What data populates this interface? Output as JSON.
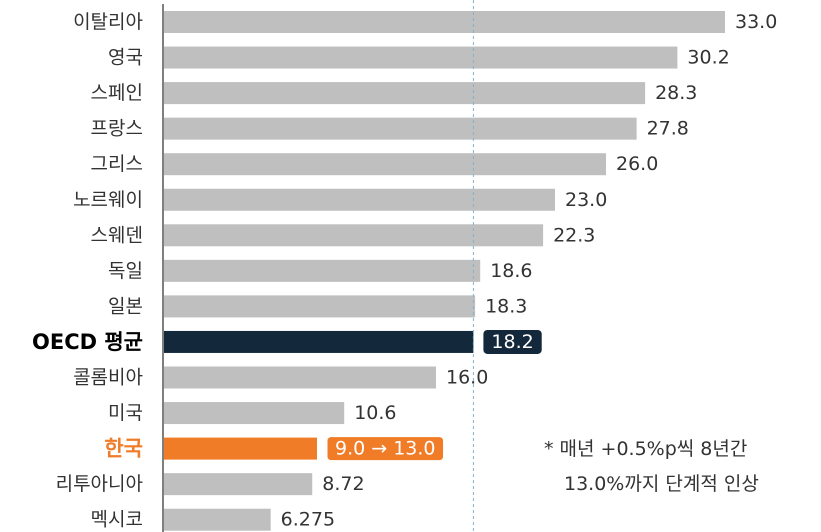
{
  "chart_data": {
    "type": "hbar",
    "categories": [
      "이탈리아",
      "영국",
      "스페인",
      "프랑스",
      "그리스",
      "노르웨이",
      "스웨덴",
      "독일",
      "일본",
      "OECD 평균",
      "콜롬비아",
      "미국",
      "한국",
      "리투아니아",
      "멕시코"
    ],
    "values": [
      33.0,
      30.2,
      28.3,
      27.8,
      26.0,
      23.0,
      22.3,
      18.6,
      18.3,
      18.2,
      16.0,
      10.6,
      9.0,
      8.72,
      6.275
    ],
    "value_labels": [
      "33.0",
      "30.2",
      "28.3",
      "27.8",
      "26.0",
      "23.0",
      "22.3",
      "18.6",
      "18.3",
      "18.2",
      "16.0",
      "10.6",
      "9.0 → 13.0",
      "8.72",
      "6.275"
    ],
    "colors": [
      "#bfbfbf",
      "#bfbfbf",
      "#bfbfbf",
      "#bfbfbf",
      "#bfbfbf",
      "#bfbfbf",
      "#bfbfbf",
      "#bfbfbf",
      "#bfbfbf",
      "#14283c",
      "#bfbfbf",
      "#bfbfbf",
      "#f07c28",
      "#bfbfbf",
      "#bfbfbf"
    ],
    "label_boxes": [
      9,
      12
    ],
    "reference_line": true,
    "xlim": [
      0,
      33
    ],
    "annotation": [
      "* 매년 +0.5%p씩 8년간",
      "13.0%까지 단계적 인상"
    ]
  }
}
